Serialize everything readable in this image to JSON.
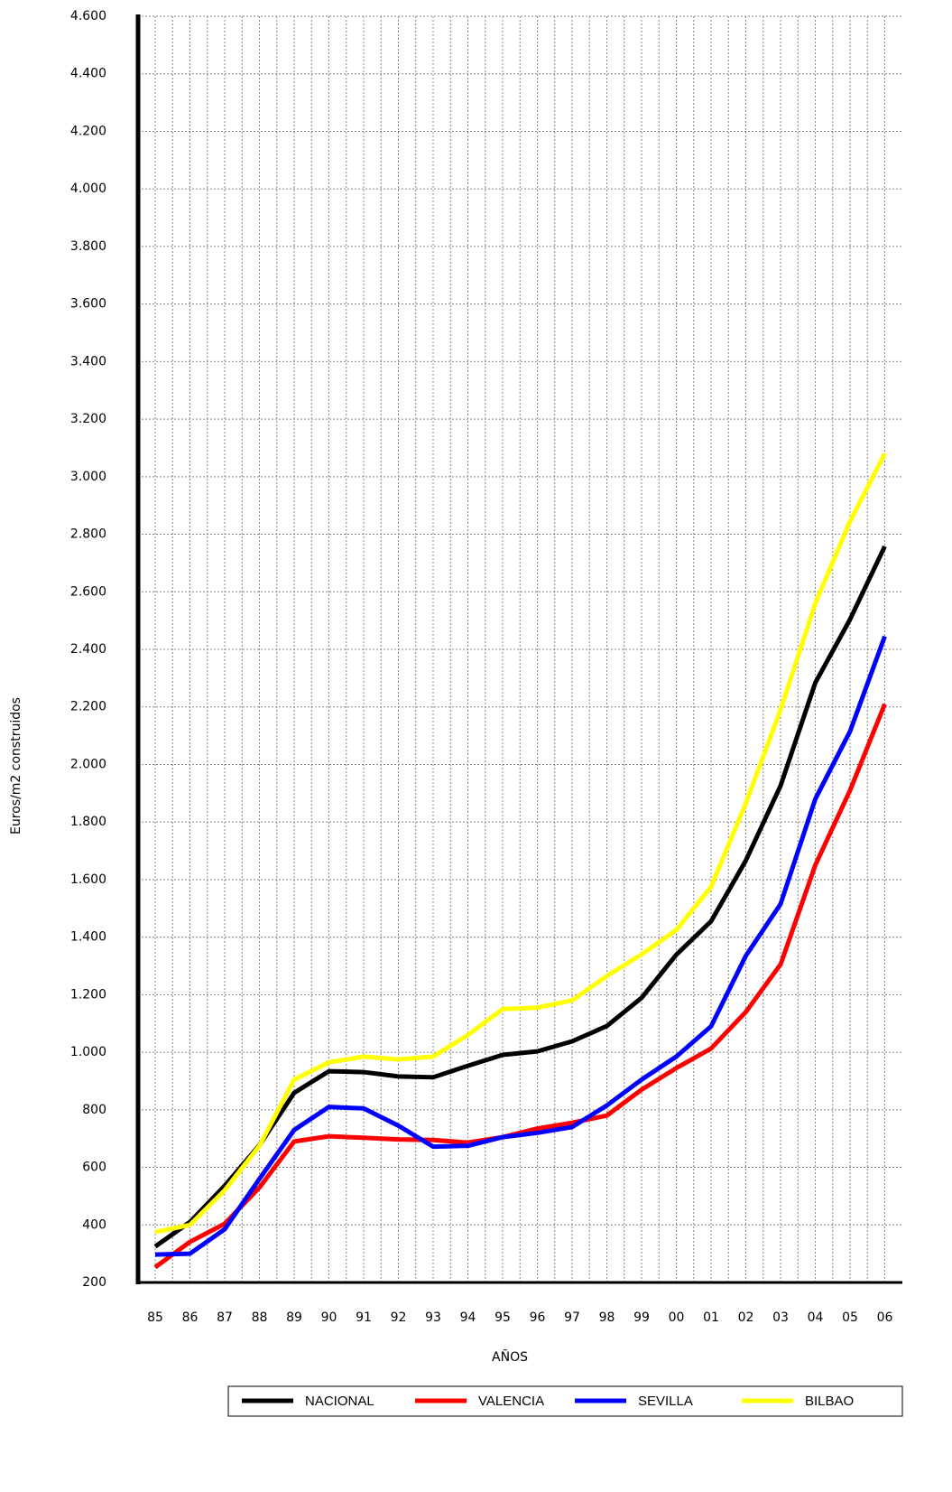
{
  "chart_data": {
    "type": "line",
    "x_label": "AÑOS",
    "y_label": "Euros/m2 construidos",
    "categories": [
      "85",
      "86",
      "87",
      "88",
      "89",
      "90",
      "91",
      "92",
      "93",
      "94",
      "95",
      "96",
      "97",
      "98",
      "99",
      "00",
      "01",
      "02",
      "03",
      "04",
      "05",
      "06"
    ],
    "series": [
      {
        "name": "NACIONAL",
        "color": "#000000",
        "values": [
          325,
          410,
          536,
          677,
          859,
          934,
          931,
          916,
          913,
          953,
          991,
          1003,
          1038,
          1091,
          1189,
          1339,
          1455,
          1666,
          1926,
          2284,
          2504,
          2758
        ]
      },
      {
        "name": "VALENCIA",
        "color": "#ff0000",
        "values": [
          253,
          341,
          404,
          530,
          690,
          708,
          703,
          697,
          695,
          686,
          705,
          735,
          755,
          780,
          870,
          945,
          1013,
          1140,
          1305,
          1650,
          1910,
          2210
        ]
      },
      {
        "name": "SEVILLA",
        "color": "#0000ff",
        "values": [
          297,
          300,
          385,
          560,
          730,
          810,
          805,
          745,
          672,
          675,
          705,
          720,
          740,
          815,
          905,
          985,
          1090,
          1335,
          1515,
          1880,
          2115,
          2445
        ]
      },
      {
        "name": "BILBAO",
        "color": "#ffff00",
        "values": [
          375,
          400,
          520,
          675,
          905,
          965,
          985,
          975,
          985,
          1060,
          1150,
          1155,
          1180,
          1265,
          1340,
          1425,
          1575,
          1865,
          2190,
          2560,
          2845,
          3080
        ]
      }
    ],
    "ylim": [
      200,
      4600
    ],
    "yticks": [
      200,
      400,
      600,
      800,
      {
        "value": 1000,
        "label": "1.000"
      },
      {
        "value": 1200,
        "label": "1.200"
      },
      {
        "value": 1400,
        "label": "1.400"
      },
      {
        "value": 1600,
        "label": "1.600"
      },
      {
        "value": 1800,
        "label": "1.800"
      },
      {
        "value": 2000,
        "label": "2.000"
      },
      {
        "value": 2200,
        "label": "2.200"
      },
      {
        "value": 2400,
        "label": "2.400"
      },
      {
        "value": 2600,
        "label": "2.600"
      },
      {
        "value": 2800,
        "label": "2.800"
      },
      {
        "value": 3000,
        "label": "3.000"
      },
      {
        "value": 3200,
        "label": "3.200"
      },
      {
        "value": 3400,
        "label": "3.400"
      },
      {
        "value": 3600,
        "label": "3.600"
      },
      {
        "value": 3800,
        "label": "3.800"
      },
      {
        "value": 4000,
        "label": "4.000"
      },
      {
        "value": 4200,
        "label": "4.200"
      },
      {
        "value": 4400,
        "label": "4.400"
      },
      {
        "value": 4600,
        "label": "4.600"
      }
    ],
    "grid": true,
    "legend": "bottom"
  }
}
